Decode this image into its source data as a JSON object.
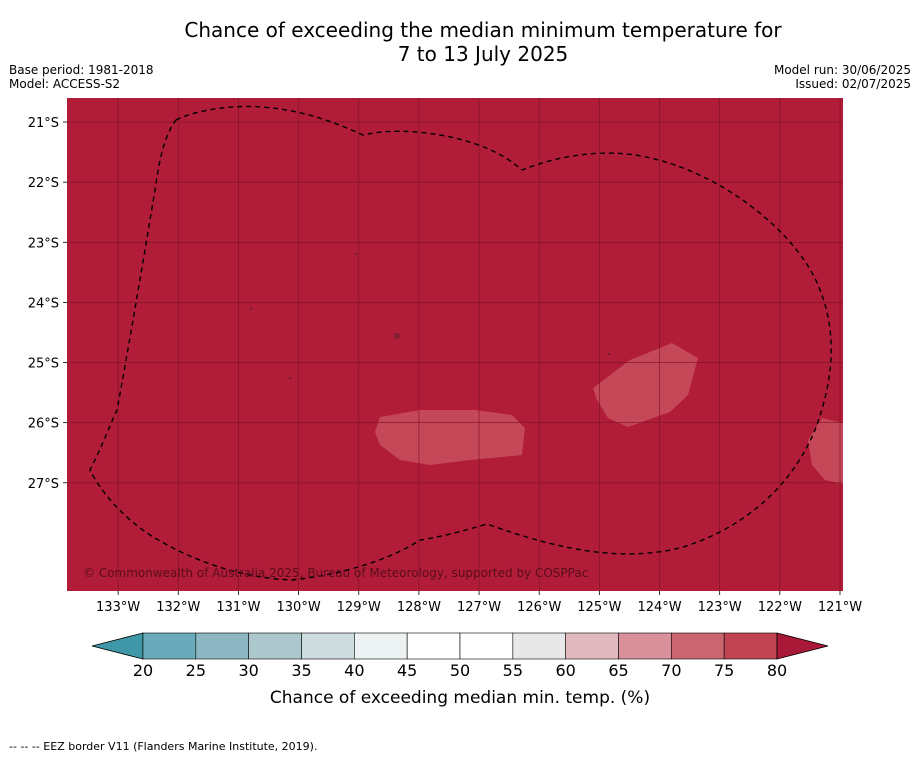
{
  "title": {
    "line1": "Chance of exceeding the median minimum temperature for",
    "line2": "7 to 13 July 2025"
  },
  "meta": {
    "base_period": "Base period: 1981-2018",
    "model": "Model: ACCESS-S2",
    "model_run": "Model run: 30/06/2025",
    "issued": "Issued: 02/07/2025"
  },
  "map": {
    "copyright": "© Commonwealth of Australia 2025, Bureau of Meteorology, supported by COSPPac",
    "background_color": "#b11c39",
    "lon_ticks": [
      "133°W",
      "132°W",
      "131°W",
      "130°W",
      "129°W",
      "128°W",
      "127°W",
      "126°W",
      "125°W",
      "124°W",
      "123°W",
      "122°W",
      "121°W"
    ],
    "lat_ticks": [
      "21°S",
      "22°S",
      "23°S",
      "24°S",
      "25°S",
      "26°S",
      "27°S"
    ],
    "lon_range": [
      -133.85,
      -120.95
    ],
    "lat_range": [
      -20.6,
      -28.8
    ]
  },
  "colorbar": {
    "label": "Chance of exceeding median min. temp. (%)",
    "ticks": [
      "20",
      "25",
      "30",
      "35",
      "40",
      "45",
      "50",
      "55",
      "60",
      "65",
      "70",
      "75",
      "80"
    ],
    "colors": [
      "#6aabbb",
      "#8db8c3",
      "#acc8cd",
      "#cddcdf",
      "#edf2f3",
      "#ffffff",
      "#ffffff",
      "#e8e8e8",
      "#e2b9bf",
      "#d8919b",
      "#cb6670",
      "#c04452"
    ],
    "low_extend_color": "#3e98a8",
    "high_extend_color": "#a91937"
  },
  "footer": "--  --  -- EEZ border V11 (Flanders Marine Institute, 2019)."
}
